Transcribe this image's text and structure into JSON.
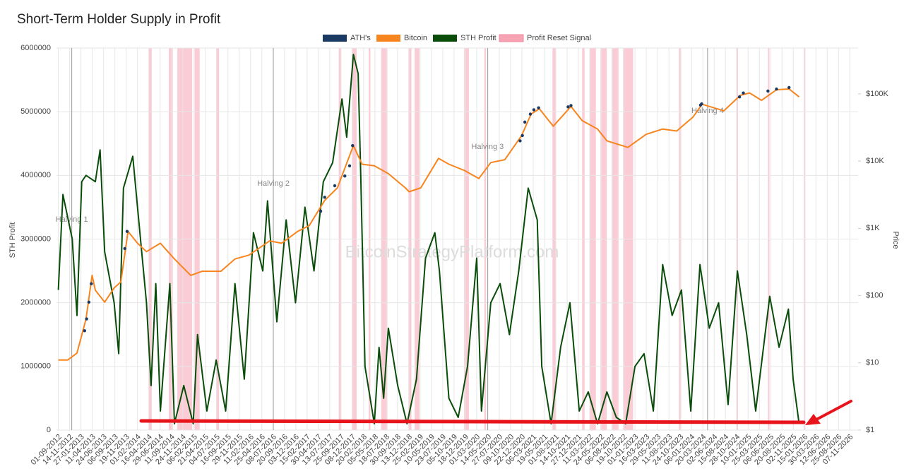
{
  "chart_data": {
    "type": "line",
    "title": "Short-Term Holder Supply in Profit",
    "watermark": "BitcoinStrategyPlatform.com",
    "ylabel": "STH Profit",
    "y2label": "Price",
    "grid": true,
    "xlim": [
      "2012-08-20",
      "2026-12-31"
    ],
    "ylim": [
      0,
      6000000
    ],
    "yticks": [
      0,
      1000000,
      2000000,
      3000000,
      4000000,
      5000000,
      6000000
    ],
    "y2_log": true,
    "y2lim": [
      1,
      480000
    ],
    "y2ticks": [
      {
        "value": 1,
        "label": "$1"
      },
      {
        "value": 10,
        "label": "$10"
      },
      {
        "value": 100,
        "label": "$100"
      },
      {
        "value": 1000,
        "label": "$1K"
      },
      {
        "value": 10000,
        "label": "$10K"
      },
      {
        "value": 100000,
        "label": "$100K"
      }
    ],
    "xticks": [
      {
        "value": "2012-09-01",
        "label": "01-09-2012"
      },
      {
        "value": "2012-11-14",
        "label": "14-11-2012"
      },
      {
        "value": "2013-01-27",
        "label": "27-01-2013"
      },
      {
        "value": "2013-04-11",
        "label": "11-04-2013"
      },
      {
        "value": "2013-06-24",
        "label": "24-06-2013"
      },
      {
        "value": "2013-09-06",
        "label": "06-09-2013"
      },
      {
        "value": "2013-11-19",
        "label": "19-11-2013"
      },
      {
        "value": "2014-02-01",
        "label": "01-02-2014"
      },
      {
        "value": "2014-04-16",
        "label": "16-04-2014"
      },
      {
        "value": "2014-06-29",
        "label": "29-06-2014"
      },
      {
        "value": "2014-09-11",
        "label": "11-09-2014"
      },
      {
        "value": "2014-11-24",
        "label": "24-11-2014"
      },
      {
        "value": "2015-02-06",
        "label": "06-02-2015"
      },
      {
        "value": "2015-04-21",
        "label": "21-04-2015"
      },
      {
        "value": "2015-07-04",
        "label": "04-07-2015"
      },
      {
        "value": "2015-09-16",
        "label": "16-09-2015"
      },
      {
        "value": "2015-11-29",
        "label": "29-11-2015"
      },
      {
        "value": "2016-02-11",
        "label": "11-02-2016"
      },
      {
        "value": "2016-04-25",
        "label": "25-04-2016"
      },
      {
        "value": "2016-07-08",
        "label": "08-07-2016"
      },
      {
        "value": "2016-09-20",
        "label": "20-09-2016"
      },
      {
        "value": "2016-12-03",
        "label": "03-12-2016"
      },
      {
        "value": "2017-02-15",
        "label": "15-02-2017"
      },
      {
        "value": "2017-04-30",
        "label": "30-04-2017"
      },
      {
        "value": "2017-07-13",
        "label": "13-07-2017"
      },
      {
        "value": "2017-09-25",
        "label": "25-09-2017"
      },
      {
        "value": "2017-12-08",
        "label": "08-12-2017"
      },
      {
        "value": "2018-02-20",
        "label": "20-02-2018"
      },
      {
        "value": "2018-05-05",
        "label": "05-05-2018"
      },
      {
        "value": "2018-07-18",
        "label": "18-07-2018"
      },
      {
        "value": "2018-09-30",
        "label": "30-09-2018"
      },
      {
        "value": "2018-12-13",
        "label": "13-12-2018"
      },
      {
        "value": "2019-02-25",
        "label": "25-02-2019"
      },
      {
        "value": "2019-05-10",
        "label": "10-05-2019"
      },
      {
        "value": "2019-07-23",
        "label": "23-07-2019"
      },
      {
        "value": "2019-10-05",
        "label": "05-10-2019"
      },
      {
        "value": "2019-12-18",
        "label": "18-12-2019"
      },
      {
        "value": "2020-03-01",
        "label": "01-03-2020"
      },
      {
        "value": "2020-05-14",
        "label": "14-05-2020"
      },
      {
        "value": "2020-07-27",
        "label": "27-07-2020"
      },
      {
        "value": "2020-10-09",
        "label": "09-10-2020"
      },
      {
        "value": "2020-12-22",
        "label": "22-12-2020"
      },
      {
        "value": "2021-03-06",
        "label": "06-03-2021"
      },
      {
        "value": "2021-05-19",
        "label": "19-05-2021"
      },
      {
        "value": "2021-08-01",
        "label": "01-08-2021"
      },
      {
        "value": "2021-10-14",
        "label": "14-10-2021"
      },
      {
        "value": "2021-12-27",
        "label": "27-12-2021"
      },
      {
        "value": "2022-03-11",
        "label": "11-03-2022"
      },
      {
        "value": "2022-05-24",
        "label": "24-05-2022"
      },
      {
        "value": "2022-08-06",
        "label": "06-08-2022"
      },
      {
        "value": "2022-10-19",
        "label": "19-10-2022"
      },
      {
        "value": "2023-01-01",
        "label": "01-01-2023"
      },
      {
        "value": "2023-03-16",
        "label": "16-03-2023"
      },
      {
        "value": "2023-05-29",
        "label": "29-05-2023"
      },
      {
        "value": "2023-08-11",
        "label": "11-08-2023"
      },
      {
        "value": "2023-10-24",
        "label": "24-10-2023"
      },
      {
        "value": "2024-01-06",
        "label": "06-01-2024"
      },
      {
        "value": "2024-03-20",
        "label": "20-03-2024"
      },
      {
        "value": "2024-06-02",
        "label": "02-06-2024"
      },
      {
        "value": "2024-08-15",
        "label": "15-08-2024"
      },
      {
        "value": "2024-10-28",
        "label": "28-10-2024"
      },
      {
        "value": "2025-01-10",
        "label": "10-01-2025"
      },
      {
        "value": "2025-03-25",
        "label": "25-03-2025"
      },
      {
        "value": "2025-06-06",
        "label": "06-06-2025"
      },
      {
        "value": "2025-08-20",
        "label": "20-08-2025"
      },
      {
        "value": "2025-11-02",
        "label": "02-11-2025"
      },
      {
        "value": "2026-01-15",
        "label": "15-01-2026"
      },
      {
        "value": "2026-03-30",
        "label": "30-03-2026"
      },
      {
        "value": "2026-06-12",
        "label": "12-06-2026"
      },
      {
        "value": "2026-08-25",
        "label": "25-08-2026"
      },
      {
        "value": "2026-11-07",
        "label": "07-11-2026"
      }
    ],
    "annotations": [
      {
        "text": "Halving 1",
        "x": "2012-11-28"
      },
      {
        "text": "Halving 2",
        "x": "2016-07-09"
      },
      {
        "text": "Halving 3",
        "x": "2020-05-11"
      },
      {
        "text": "Halving 4",
        "x": "2024-04-20"
      }
    ],
    "series": [
      {
        "name": "ATH's",
        "color": "#1b3a63",
        "axis": "y2",
        "x": [
          "2013-02-20",
          "2013-03-05",
          "2013-03-20",
          "2013-04-05",
          "2013-11-10",
          "2013-11-25",
          "2017-05-15",
          "2017-06-10",
          "2017-08-15",
          "2017-10-20",
          "2017-11-20",
          "2017-12-10",
          "2020-12-10",
          "2020-12-25",
          "2021-01-10",
          "2021-02-15",
          "2021-03-10",
          "2021-04-10",
          "2021-10-20",
          "2021-11-08",
          "2024-03-05",
          "2024-03-12",
          "2024-11-15",
          "2024-12-10",
          "2025-05-20",
          "2025-07-15",
          "2025-10-05"
        ],
        "values": [
          30,
          45,
          80,
          150,
          500,
          900,
          1800,
          2900,
          4300,
          6000,
          8500,
          17000,
          20000,
          24000,
          38000,
          50000,
          58000,
          62000,
          64000,
          67000,
          68000,
          71000,
          90000,
          103000,
          110000,
          118000,
          124000
        ]
      },
      {
        "name": "Bitcoin",
        "color": "#f7851f",
        "axis": "y2",
        "x": [
          "2012-09-01",
          "2012-11-01",
          "2013-01-01",
          "2013-03-01",
          "2013-04-10",
          "2013-05-01",
          "2013-07-01",
          "2013-09-01",
          "2013-10-15",
          "2013-12-01",
          "2014-02-01",
          "2014-04-01",
          "2014-07-01",
          "2014-10-01",
          "2015-01-15",
          "2015-04-01",
          "2015-08-01",
          "2015-11-01",
          "2016-02-01",
          "2016-06-15",
          "2016-09-01",
          "2016-12-15",
          "2017-03-01",
          "2017-06-10",
          "2017-09-01",
          "2017-12-15",
          "2018-02-10",
          "2018-05-01",
          "2018-08-01",
          "2018-11-20",
          "2018-12-15",
          "2019-03-01",
          "2019-06-25",
          "2019-09-01",
          "2019-12-15",
          "2020-03-15",
          "2020-06-01",
          "2020-09-01",
          "2020-12-20",
          "2021-02-20",
          "2021-04-15",
          "2021-07-15",
          "2021-11-08",
          "2022-01-20",
          "2022-05-01",
          "2022-07-01",
          "2022-11-15",
          "2023-03-15",
          "2023-07-01",
          "2023-10-01",
          "2024-01-15",
          "2024-03-15",
          "2024-08-05",
          "2024-11-20",
          "2025-01-20",
          "2025-04-08",
          "2025-07-15",
          "2025-10-05",
          "2025-12-10"
        ],
        "values": [
          11,
          11,
          14,
          45,
          200,
          120,
          80,
          130,
          160,
          900,
          600,
          450,
          600,
          350,
          200,
          230,
          230,
          350,
          400,
          650,
          600,
          900,
          1100,
          2600,
          4000,
          17000,
          9000,
          8500,
          6500,
          4000,
          3500,
          4000,
          11000,
          9000,
          7200,
          5500,
          9500,
          10500,
          24000,
          50000,
          60000,
          33000,
          65000,
          40000,
          30000,
          20000,
          16000,
          25000,
          30000,
          28000,
          45000,
          70000,
          56000,
          95000,
          103000,
          80000,
          115000,
          118000,
          90000
        ]
      },
      {
        "name": "STH Profit",
        "color": "#0a4d0a",
        "axis": "y",
        "x": [
          "2012-09-01",
          "2012-10-01",
          "2012-12-01",
          "2013-01-01",
          "2013-02-01",
          "2013-03-01",
          "2013-05-01",
          "2013-06-01",
          "2013-07-01",
          "2013-09-01",
          "2013-10-01",
          "2013-11-01",
          "2014-01-01",
          "2014-02-01",
          "2014-04-01",
          "2014-05-01",
          "2014-06-01",
          "2014-07-01",
          "2014-09-01",
          "2014-10-01",
          "2014-12-01",
          "2015-02-01",
          "2015-03-01",
          "2015-05-01",
          "2015-07-01",
          "2015-09-01",
          "2015-11-01",
          "2016-01-01",
          "2016-03-01",
          "2016-05-01",
          "2016-06-01",
          "2016-08-01",
          "2016-10-01",
          "2016-12-01",
          "2017-02-01",
          "2017-04-01",
          "2017-06-01",
          "2017-08-01",
          "2017-10-01",
          "2017-11-01",
          "2017-12-15",
          "2018-01-15",
          "2018-02-01",
          "2018-03-01",
          "2018-05-01",
          "2018-06-01",
          "2018-07-01",
          "2018-08-01",
          "2018-10-01",
          "2018-12-01",
          "2019-02-01",
          "2019-04-01",
          "2019-06-01",
          "2019-07-01",
          "2019-09-01",
          "2019-11-01",
          "2020-01-01",
          "2020-03-01",
          "2020-04-01",
          "2020-06-01",
          "2020-08-01",
          "2020-10-01",
          "2020-12-01",
          "2021-02-01",
          "2021-04-01",
          "2021-05-01",
          "2021-07-01",
          "2021-09-01",
          "2021-11-01",
          "2022-01-01",
          "2022-03-01",
          "2022-05-01",
          "2022-07-01",
          "2022-09-01",
          "2022-11-01",
          "2023-01-01",
          "2023-03-01",
          "2023-05-01",
          "2023-07-01",
          "2023-09-01",
          "2023-11-01",
          "2024-01-01",
          "2024-03-01",
          "2024-05-01",
          "2024-07-01",
          "2024-09-01",
          "2024-11-01",
          "2025-01-01",
          "2025-03-01",
          "2025-06-01",
          "2025-08-01",
          "2025-10-01",
          "2025-11-01",
          "2025-12-10"
        ],
        "values": [
          2200000,
          3700000,
          3000000,
          1800000,
          3900000,
          4000000,
          3900000,
          4400000,
          2800000,
          2000000,
          1200000,
          3800000,
          4300000,
          3500000,
          2000000,
          700000,
          2300000,
          300000,
          2300000,
          100000,
          700000,
          100000,
          1500000,
          300000,
          1100000,
          300000,
          2300000,
          800000,
          3100000,
          2500000,
          3600000,
          1700000,
          3300000,
          2000000,
          3500000,
          2500000,
          3900000,
          4200000,
          5200000,
          4600000,
          5900000,
          5600000,
          4000000,
          1000000,
          100000,
          1300000,
          500000,
          1600000,
          700000,
          100000,
          800000,
          2700000,
          3100000,
          2500000,
          500000,
          200000,
          1000000,
          2700000,
          300000,
          2000000,
          2300000,
          1500000,
          2500000,
          3800000,
          3300000,
          1000000,
          100000,
          1300000,
          2000000,
          300000,
          600000,
          100000,
          600000,
          200000,
          100000,
          1000000,
          1200000,
          300000,
          2600000,
          1800000,
          2200000,
          300000,
          2600000,
          1600000,
          2000000,
          400000,
          2500000,
          1500000,
          300000,
          2100000,
          1300000,
          1900000,
          800000,
          100000
        ]
      },
      {
        "name": "Profit Reset Signal",
        "color": "#f6a3b3",
        "x": [
          "2014-04-15",
          "2014-08-25",
          "2014-10-20",
          "2015-02-10",
          "2015-07-01",
          "2017-09-10",
          "2017-12-05",
          "2018-03-25",
          "2018-06-15",
          "2018-12-10",
          "2019-01-20",
          "2019-12-10",
          "2020-04-20",
          "2021-07-10",
          "2022-01-20",
          "2022-03-10",
          "2022-05-20",
          "2022-08-01",
          "2022-10-15",
          "2023-10-15",
          "2024-10-25",
          "2025-05-20",
          "2026-01-10"
        ],
        "x_end": [
          "2014-05-05",
          "2014-09-20",
          "2015-01-25",
          "2015-03-15",
          "2015-07-20",
          "2017-09-25",
          "2018-01-05",
          "2018-04-05",
          "2018-07-25",
          "2018-12-30",
          "2019-02-20",
          "2020-01-10",
          "2020-04-30",
          "2021-07-30",
          "2022-02-05",
          "2022-04-20",
          "2022-06-30",
          "2022-09-15",
          "2022-12-20",
          "2023-10-30",
          "2024-11-05",
          "2025-05-30",
          "2026-01-20"
        ]
      }
    ]
  }
}
